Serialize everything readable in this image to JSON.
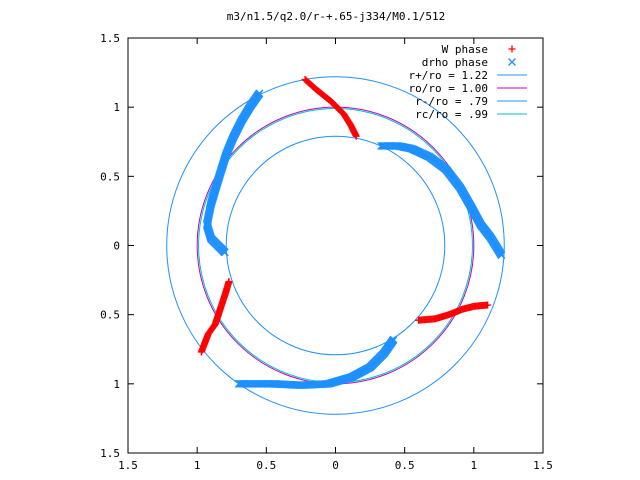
{
  "chart_data": {
    "type": "scatter",
    "title": "m3/n1.5/q2.0/r-+.65-j334/M0.1/512",
    "xlabel": "",
    "ylabel": "",
    "xlim": [
      -1.5,
      1.5
    ],
    "ylim": [
      -1.5,
      1.5
    ],
    "x_tick_values": [
      -1.5,
      -1,
      -0.5,
      0,
      0.5,
      1,
      1.5
    ],
    "x_tick_labels": [
      "1.5",
      "1",
      "0.5",
      "0",
      "0.5",
      "1",
      "1.5"
    ],
    "y_tick_values": [
      -1.5,
      -1,
      -0.5,
      0,
      0.5,
      1,
      1.5
    ],
    "y_tick_labels": [
      "1.5",
      "1",
      "0.5",
      "0",
      "0.5",
      "1",
      "1.5"
    ],
    "grid": false,
    "legend_position": "top-right",
    "series": [
      {
        "name": "W phase",
        "marker": "+",
        "color": "#ff0000",
        "segments": [
          [
            [
              -0.22,
              1.2
            ],
            [
              -0.13,
              1.12
            ],
            [
              -0.03,
              1.04
            ],
            [
              0.06,
              0.95
            ],
            [
              0.11,
              0.87
            ],
            [
              0.15,
              0.79
            ]
          ],
          [
            [
              0.6,
              -0.54
            ],
            [
              0.72,
              -0.53
            ],
            [
              0.82,
              -0.5
            ],
            [
              0.92,
              -0.46
            ],
            [
              1.0,
              -0.44
            ],
            [
              1.1,
              -0.43
            ]
          ],
          [
            [
              -0.77,
              -0.26
            ],
            [
              -0.8,
              -0.36
            ],
            [
              -0.84,
              -0.48
            ],
            [
              -0.87,
              -0.57
            ],
            [
              -0.92,
              -0.64
            ],
            [
              -0.97,
              -0.77
            ]
          ]
        ]
      },
      {
        "name": "drho phase",
        "marker": "x",
        "color": "#1e90ff",
        "segments": [
          [
            [
              -0.55,
              1.1
            ],
            [
              -0.62,
              1.0
            ],
            [
              -0.68,
              0.9
            ],
            [
              -0.74,
              0.78
            ],
            [
              -0.79,
              0.66
            ],
            [
              -0.84,
              0.5
            ],
            [
              -0.9,
              0.3
            ],
            [
              -0.93,
              0.15
            ],
            [
              -0.9,
              0.05
            ],
            [
              -0.8,
              -0.05
            ]
          ],
          [
            [
              0.33,
              0.72
            ],
            [
              0.45,
              0.72
            ],
            [
              0.55,
              0.7
            ],
            [
              0.68,
              0.64
            ],
            [
              0.8,
              0.55
            ],
            [
              0.9,
              0.42
            ],
            [
              0.98,
              0.28
            ],
            [
              1.05,
              0.15
            ],
            [
              1.12,
              0.06
            ],
            [
              1.2,
              -0.07
            ]
          ],
          [
            [
              0.42,
              -0.68
            ],
            [
              0.35,
              -0.78
            ],
            [
              0.25,
              -0.88
            ],
            [
              0.12,
              -0.95
            ],
            [
              -0.05,
              -1.0
            ],
            [
              -0.25,
              -1.01
            ],
            [
              -0.45,
              -1.0
            ],
            [
              -0.7,
              -1.0
            ]
          ]
        ]
      },
      {
        "name": "r+/ro = 1.22",
        "type": "circle",
        "radius": 1.22,
        "color": "#1e90ff"
      },
      {
        "name": "ro/ro = 1.00",
        "type": "circle",
        "radius": 1.0,
        "color": "#c000c0"
      },
      {
        "name": "r-/ro = .79",
        "type": "circle",
        "radius": 0.79,
        "color": "#1e90ff"
      },
      {
        "name": "rc/ro = .99",
        "type": "circle",
        "radius": 0.99,
        "color": "#00c0c0"
      }
    ]
  }
}
